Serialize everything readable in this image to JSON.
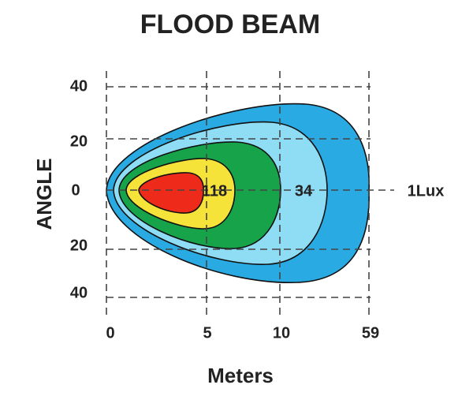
{
  "title": "FLOOD  BEAM",
  "y_axis": {
    "label": "ANGLE",
    "ticks": [
      "40",
      "20",
      "0",
      "20",
      "40"
    ]
  },
  "x_axis": {
    "label": "Meters",
    "ticks": [
      "0",
      "5",
      "10",
      "59"
    ]
  },
  "zone_labels": [
    "118",
    "34",
    "1Lux"
  ]
}
